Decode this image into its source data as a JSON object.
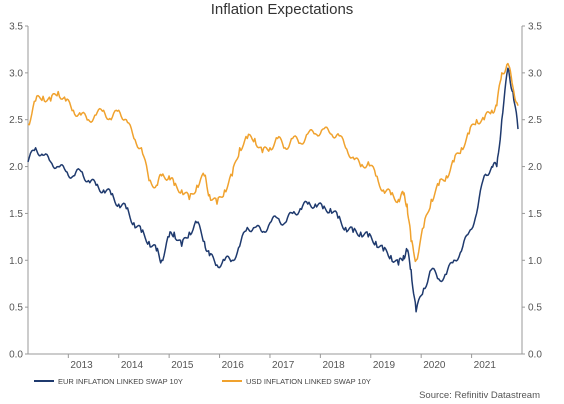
{
  "chart_data": {
    "type": "line",
    "title": "Inflation Expectations",
    "xlabel": "",
    "ylabel": "",
    "xlim": [
      2012.2,
      2022.0
    ],
    "ylim": [
      0.0,
      3.5
    ],
    "y_ticks": [
      "0.0",
      "0.5",
      "1.0",
      "1.5",
      "2.0",
      "2.5",
      "3.0",
      "3.5"
    ],
    "y_tick_values": [
      0.0,
      0.5,
      1.0,
      1.5,
      2.0,
      2.5,
      3.0,
      3.5
    ],
    "x_ticks": [
      "2013",
      "2014",
      "2015",
      "2016",
      "2017",
      "2018",
      "2019",
      "2020",
      "2021"
    ],
    "x_tick_values": [
      2013,
      2014,
      2015,
      2016,
      2017,
      2018,
      2019,
      2020,
      2021
    ],
    "grid": false,
    "legend_position": "bottom-left",
    "source": "Source: Refinitiv Datastream",
    "series": [
      {
        "name": "EUR INFLATION LINKED SWAP 10Y",
        "color": "#1f3a6e",
        "x": [
          2012.2,
          2012.35,
          2012.5,
          2012.65,
          2012.8,
          2012.95,
          2013.1,
          2013.25,
          2013.4,
          2013.55,
          2013.7,
          2013.85,
          2014.0,
          2014.15,
          2014.3,
          2014.45,
          2014.6,
          2014.75,
          2014.85,
          2015.0,
          2015.1,
          2015.25,
          2015.4,
          2015.55,
          2015.7,
          2015.8,
          2015.95,
          2016.1,
          2016.25,
          2016.4,
          2016.55,
          2016.7,
          2016.85,
          2017.0,
          2017.15,
          2017.3,
          2017.45,
          2017.6,
          2017.75,
          2017.9,
          2018.05,
          2018.2,
          2018.35,
          2018.5,
          2018.65,
          2018.8,
          2018.95,
          2019.1,
          2019.25,
          2019.4,
          2019.55,
          2019.65,
          2019.72,
          2019.8,
          2019.9,
          2020.05,
          2020.2,
          2020.35,
          2020.5,
          2020.65,
          2020.8,
          2020.95,
          2021.1,
          2021.25,
          2021.4,
          2021.5,
          2021.6,
          2021.72,
          2021.82,
          2021.92
        ],
        "values": [
          2.05,
          2.2,
          2.12,
          2.05,
          2.0,
          1.95,
          1.9,
          1.95,
          1.85,
          1.8,
          1.75,
          1.7,
          1.6,
          1.55,
          1.4,
          1.3,
          1.2,
          1.1,
          1.0,
          1.25,
          1.3,
          1.15,
          1.3,
          1.4,
          1.2,
          1.05,
          0.95,
          1.0,
          1.0,
          1.15,
          1.35,
          1.35,
          1.3,
          1.4,
          1.45,
          1.4,
          1.5,
          1.55,
          1.6,
          1.6,
          1.55,
          1.55,
          1.45,
          1.35,
          1.3,
          1.3,
          1.25,
          1.2,
          1.1,
          1.05,
          0.95,
          1.05,
          1.1,
          0.9,
          0.45,
          0.7,
          0.9,
          0.8,
          0.85,
          1.0,
          1.1,
          1.3,
          1.5,
          1.9,
          2.0,
          2.0,
          2.5,
          3.05,
          2.8,
          2.4
        ]
      },
      {
        "name": "USD INFLATION LINKED SWAP 10Y",
        "color": "#f0a22e",
        "x": [
          2012.2,
          2012.35,
          2012.5,
          2012.65,
          2012.8,
          2012.95,
          2013.1,
          2013.25,
          2013.4,
          2013.55,
          2013.7,
          2013.85,
          2014.0,
          2014.15,
          2014.3,
          2014.45,
          2014.6,
          2014.75,
          2014.85,
          2015.0,
          2015.1,
          2015.25,
          2015.4,
          2015.55,
          2015.7,
          2015.8,
          2015.95,
          2016.1,
          2016.25,
          2016.4,
          2016.55,
          2016.7,
          2016.85,
          2017.0,
          2017.15,
          2017.3,
          2017.45,
          2017.6,
          2017.75,
          2017.9,
          2018.05,
          2018.2,
          2018.35,
          2018.5,
          2018.65,
          2018.8,
          2018.95,
          2019.1,
          2019.25,
          2019.4,
          2019.55,
          2019.65,
          2019.72,
          2019.8,
          2019.9,
          2020.05,
          2020.2,
          2020.35,
          2020.5,
          2020.65,
          2020.8,
          2020.95,
          2021.1,
          2021.25,
          2021.4,
          2021.5,
          2021.6,
          2021.72,
          2021.82,
          2021.92
        ],
        "values": [
          2.45,
          2.7,
          2.75,
          2.7,
          2.8,
          2.7,
          2.6,
          2.55,
          2.5,
          2.55,
          2.6,
          2.5,
          2.6,
          2.5,
          2.3,
          2.2,
          1.85,
          1.8,
          1.9,
          1.9,
          1.8,
          1.75,
          1.65,
          1.8,
          1.9,
          1.7,
          1.6,
          1.75,
          1.9,
          2.2,
          2.3,
          2.3,
          2.15,
          2.2,
          2.3,
          2.2,
          2.3,
          2.25,
          2.35,
          2.35,
          2.4,
          2.35,
          2.35,
          2.2,
          2.1,
          2.0,
          2.05,
          1.9,
          1.75,
          1.7,
          1.65,
          1.7,
          1.6,
          1.2,
          1.0,
          1.35,
          1.65,
          1.8,
          1.9,
          2.05,
          2.2,
          2.35,
          2.5,
          2.5,
          2.6,
          2.65,
          3.0,
          3.1,
          2.85,
          2.65
        ]
      }
    ]
  }
}
